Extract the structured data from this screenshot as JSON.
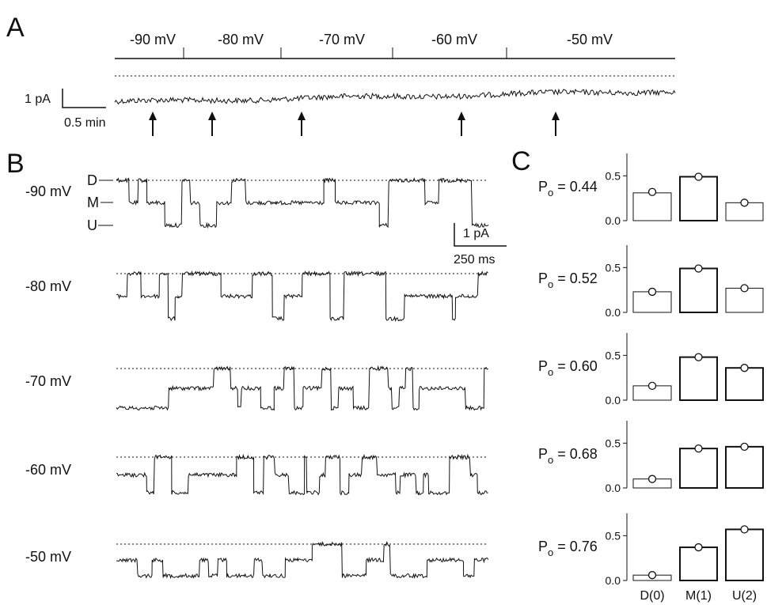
{
  "panels": {
    "a": {
      "letter": "A",
      "voltage_segments": [
        "-90 mV",
        "-80 mV",
        "-70 mV",
        "-60 mV",
        "-50 mV"
      ],
      "scale_amplitude": "1 pA",
      "scale_time": "0.5 min",
      "arrow_count": 5
    },
    "b": {
      "letter": "B",
      "level_labels": [
        "D",
        "M",
        "U"
      ],
      "scale_amplitude": "1 pA",
      "scale_time": "250 ms",
      "rows": [
        {
          "voltage": "-90 mV"
        },
        {
          "voltage": "-80 mV"
        },
        {
          "voltage": "-70 mV"
        },
        {
          "voltage": "-60 mV"
        },
        {
          "voltage": "-50 mV"
        }
      ]
    },
    "c": {
      "letter": "C"
    }
  },
  "chart_data": {
    "type": "bar",
    "categories": [
      "D(0)",
      "M(1)",
      "U(2)"
    ],
    "ylim": [
      0,
      0.75
    ],
    "yticks": [
      "0.0",
      "0.5"
    ],
    "po_label_prefix": "P",
    "po_label_subscript": "o",
    "panels": [
      {
        "po": "= 0.44",
        "bars": [
          0.31,
          0.49,
          0.2
        ],
        "circles": [
          0.32,
          0.49,
          0.2
        ]
      },
      {
        "po": "= 0.52",
        "bars": [
          0.23,
          0.49,
          0.27
        ],
        "circles": [
          0.23,
          0.49,
          0.27
        ]
      },
      {
        "po": "= 0.60",
        "bars": [
          0.16,
          0.48,
          0.36
        ],
        "circles": [
          0.16,
          0.48,
          0.36
        ]
      },
      {
        "po": "= 0.68",
        "bars": [
          0.1,
          0.44,
          0.46
        ],
        "circles": [
          0.1,
          0.44,
          0.46
        ]
      },
      {
        "po": "= 0.76",
        "bars": [
          0.06,
          0.37,
          0.57
        ],
        "circles": [
          0.06,
          0.37,
          0.57
        ]
      }
    ]
  }
}
